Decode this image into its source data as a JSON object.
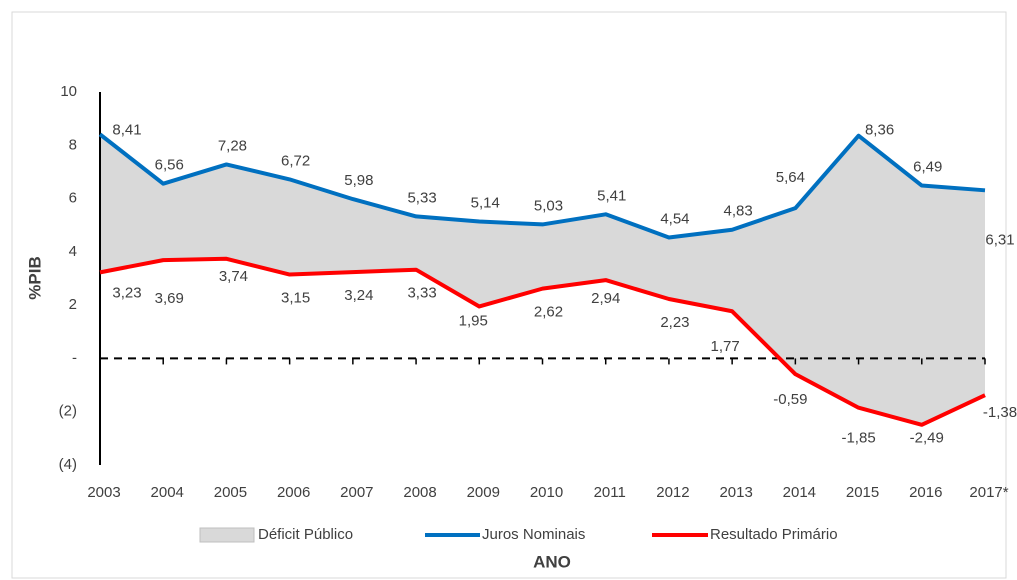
{
  "chart_data": {
    "type": "line",
    "y_label": "%PIB",
    "x_label": "ANO",
    "categories": [
      "2003",
      "2004",
      "2005",
      "2006",
      "2007",
      "2008",
      "2009",
      "2010",
      "2011",
      "2012",
      "2013",
      "2014",
      "2015",
      "2016",
      "2017*"
    ],
    "area": {
      "name": "Déficit Público",
      "color": "#d9d9d9"
    },
    "series": [
      {
        "name": "Juros Nominais",
        "color": "#0070c0",
        "values": [
          8.41,
          6.56,
          7.28,
          6.72,
          5.98,
          5.33,
          5.14,
          5.03,
          5.41,
          4.54,
          4.83,
          5.64,
          8.36,
          6.49,
          6.31
        ],
        "value_labels": [
          "8,41",
          "6,56",
          "7,28",
          "6,72",
          "5,98",
          "5,33",
          "5,14",
          "5,03",
          "5,41",
          "4,54",
          "4,83",
          "5,64",
          "8,36",
          "6,49",
          "6,31"
        ]
      },
      {
        "name": "Resultado Primário",
        "color": "#ff0000",
        "values": [
          3.23,
          3.69,
          3.74,
          3.15,
          3.24,
          3.33,
          1.95,
          2.62,
          2.94,
          2.23,
          1.77,
          -0.59,
          -1.85,
          -2.49,
          -1.38
        ],
        "value_labels": [
          "3,23",
          "3,69",
          "3,74",
          "3,15",
          "3,24",
          "3,33",
          "1,95",
          "2,62",
          "2,94",
          "2,23",
          "1,77",
          "-0,59",
          "-1,85",
          "-2,49",
          "-1,38"
        ]
      }
    ],
    "ylim": [
      -4,
      10
    ],
    "yticks": [
      {
        "value": -4,
        "label": "(4)"
      },
      {
        "value": -2,
        "label": "(2)"
      },
      {
        "value": 0,
        "label": "-"
      },
      2,
      4,
      6,
      8,
      10
    ]
  }
}
